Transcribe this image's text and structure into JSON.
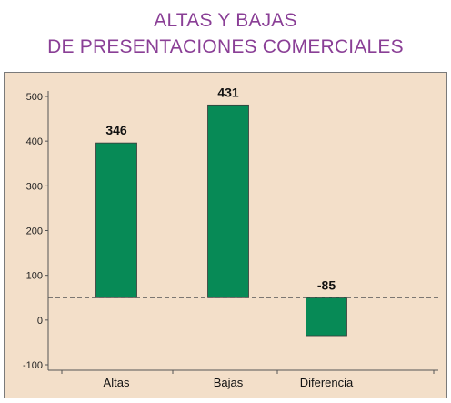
{
  "title_line1": "ALTAS Y BAJAS",
  "title_line2": "DE PRESENTACIONES COMERCIALES",
  "chart_data": {
    "type": "bar",
    "categories": [
      "Altas",
      "Bajas",
      "Diferencia"
    ],
    "values": [
      346,
      431,
      -85
    ],
    "data_labels": [
      "346",
      "431",
      "-85"
    ],
    "ylim": [
      -100,
      500
    ],
    "yticks": [
      -100,
      0,
      100,
      200,
      300,
      400,
      500
    ],
    "reference_line": 50,
    "grid": false,
    "colors": {
      "bar": "#078a56",
      "title": "#8a3f96",
      "panel": "#f3dfc9"
    },
    "title": "ALTAS Y BAJAS DE PRESENTACIONES COMERCIALES",
    "xlabel": "",
    "ylabel": ""
  }
}
